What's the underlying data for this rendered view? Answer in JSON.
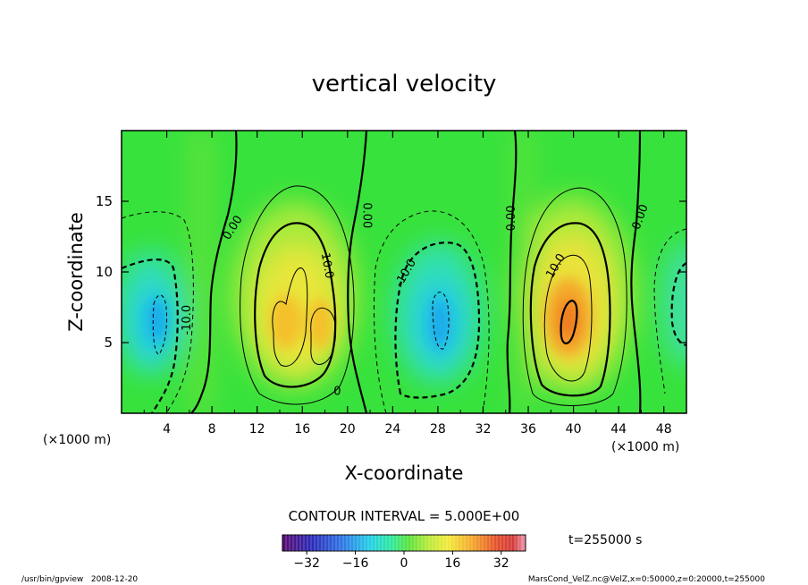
{
  "chart_data": {
    "type": "heatmap",
    "title": "vertical velocity",
    "xlabel": "X-coordinate",
    "ylabel": "Z-coordinate",
    "x_unit_left": "(×1000 m)",
    "x_unit_right": "(×1000 m)",
    "xlim": [
      0,
      50
    ],
    "ylim": [
      0,
      20
    ],
    "x_ticks": [
      4,
      8,
      12,
      16,
      20,
      24,
      28,
      32,
      36,
      40,
      44,
      48
    ],
    "y_ticks": [
      5,
      10,
      15
    ],
    "contour_interval_text": "CONTOUR INTERVAL = 5.000E+00",
    "time_text": "t=255000 s",
    "colorbar": {
      "min": -40,
      "max": 40,
      "ticks": [
        -32,
        -16,
        0,
        16,
        32
      ]
    },
    "contour_labels": [
      {
        "text": "0.00",
        "x": 10.1,
        "y": 13.0,
        "rot": -58
      },
      {
        "text": "0.00",
        "x": 21.4,
        "y": 14.0,
        "rot": 90
      },
      {
        "text": "0.00",
        "x": 34.8,
        "y": 13.8,
        "rot": -90
      },
      {
        "text": "0.00",
        "x": 46.2,
        "y": 13.8,
        "rot": -70
      },
      {
        "text": "10.0",
        "x": 17.9,
        "y": 10.4,
        "rot": 80
      },
      {
        "text": "-10.0",
        "x": 6.1,
        "y": 6.6,
        "rot": -90
      },
      {
        "text": "-10.0",
        "x": 25.4,
        "y": 9.8,
        "rot": -60
      },
      {
        "text": "10.0",
        "x": 38.7,
        "y": 10.3,
        "rot": -60
      },
      {
        "text": "0",
        "x": 19.1,
        "y": 1.3,
        "rot": 0
      }
    ],
    "cells": [
      {
        "x": 2.5,
        "z": 6.5,
        "w": -25
      },
      {
        "x": 14.0,
        "z": 6.5,
        "w": 18
      },
      {
        "x": 18.0,
        "z": 6.0,
        "w": 16
      },
      {
        "x": 28.0,
        "z": 6.8,
        "w": -24
      },
      {
        "x": 40.0,
        "z": 6.8,
        "w": 30
      },
      {
        "x": 49.5,
        "z": 7.0,
        "w": -8
      }
    ]
  },
  "footer": {
    "left": "/usr/bin/gpview   2008-12-20",
    "right": "MarsCond_VelZ.nc@VelZ,x=0:50000,z=0:20000,t=255000"
  }
}
